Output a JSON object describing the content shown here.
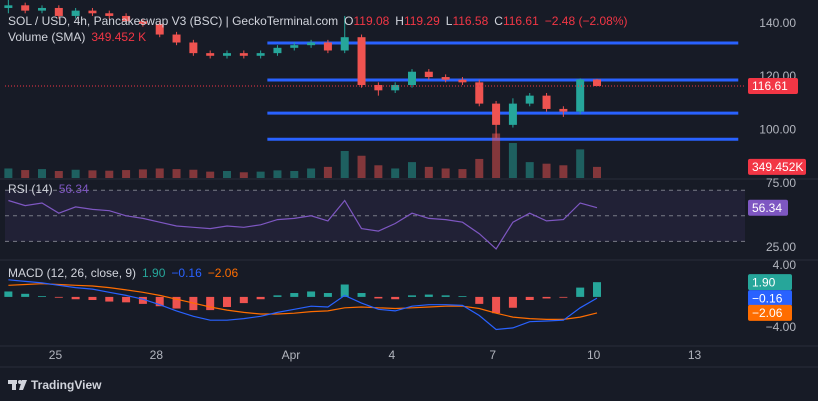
{
  "chart_data": [
    {
      "type": "candlestick",
      "title": "SOL / USD, 4h, Pancakeswap V3 (BSC) | GeckoTerminal.com",
      "ohlc": [
        {
          "label": "O",
          "value": 119.08
        },
        {
          "label": "H",
          "value": 119.29
        },
        {
          "label": "L",
          "value": 116.58
        },
        {
          "label": "C",
          "value": 116.61
        }
      ],
      "change": "−2.48 (−2.08%)",
      "x": [
        23.6,
        24.1,
        24.6,
        25.1,
        25.6,
        26.1,
        26.6,
        27.1,
        27.6,
        28.1,
        28.6,
        29.1,
        29.6,
        30.1,
        30.6,
        31.1,
        31.6,
        32.1,
        32.6,
        33.1,
        33.6,
        34.1,
        34.6,
        35.1,
        35.6,
        36.1,
        36.6,
        37.1,
        37.6,
        38.1,
        38.6,
        39.1,
        39.6,
        40.1,
        40.6,
        41.1
      ],
      "open": [
        146,
        147,
        145,
        146,
        143,
        145,
        144,
        143,
        141,
        140,
        136,
        133,
        129,
        128,
        129,
        128,
        129,
        131,
        132,
        133,
        130,
        135,
        117,
        115,
        117,
        122,
        120,
        119,
        118,
        110,
        102,
        110,
        113,
        108,
        107,
        119.08
      ],
      "high": [
        149,
        148,
        147,
        147,
        146,
        146,
        145,
        144,
        142,
        141,
        137,
        134,
        130,
        130,
        130,
        130,
        132,
        133,
        134,
        134,
        143,
        136,
        118,
        118,
        123,
        123,
        121,
        120,
        119,
        111,
        112,
        114,
        114,
        109,
        119.5,
        119.29
      ],
      "low": [
        144,
        144,
        144,
        142,
        142,
        143,
        142,
        140,
        139,
        135,
        132,
        128,
        127,
        127,
        127,
        127,
        128,
        130,
        131,
        129,
        129,
        116,
        113,
        114,
        116,
        119,
        118,
        117,
        109,
        97,
        101,
        109,
        107,
        105,
        106,
        116.58
      ],
      "close": [
        147,
        145,
        146,
        143,
        145,
        144,
        143,
        141,
        140,
        136,
        133,
        129,
        128,
        129,
        128,
        129,
        131,
        132,
        133,
        130,
        135,
        117,
        115,
        117,
        122,
        120,
        119,
        118,
        110,
        102,
        110,
        113,
        108,
        107,
        119.08,
        116.61
      ],
      "up_color": "#26a69a",
      "down_color": "#ef5350",
      "ylim": [
        82,
        149
      ],
      "yticks": [
        {
          "value": 140,
          "label": "140.00"
        },
        {
          "value": 120,
          "label": "120.00"
        },
        {
          "value": 100,
          "label": "100.00"
        }
      ],
      "xlim": [
        23.5,
        45.5
      ],
      "xticks": [
        {
          "value": 25,
          "label": "25"
        },
        {
          "value": 28,
          "label": "28"
        },
        {
          "value": 32,
          "label": "Apr"
        },
        {
          "value": 35,
          "label": "4"
        },
        {
          "value": 38,
          "label": "7"
        },
        {
          "value": 41,
          "label": "10"
        },
        {
          "value": 44,
          "label": "13"
        }
      ],
      "levels": [
        132.8,
        118.9,
        106.4,
        96.6
      ],
      "levels_x": [
        31.3,
        45.3
      ],
      "level_color": "#2962ff",
      "last_price_color": "#f23645"
    },
    {
      "type": "bar",
      "title": "Volume (SMA)",
      "legend_value": "349.452 K",
      "values": [
        300,
        250,
        280,
        220,
        260,
        240,
        230,
        250,
        270,
        300,
        280,
        260,
        200,
        220,
        180,
        200,
        240,
        220,
        300,
        350,
        850,
        700,
        400,
        300,
        500,
        350,
        300,
        280,
        600,
        1400,
        1100,
        500,
        450,
        400,
        900,
        349.452
      ],
      "value_labels": [
        null,
        null,
        null,
        null,
        null,
        null,
        null,
        null,
        null,
        null,
        null,
        null,
        null,
        null,
        null,
        null,
        null,
        null,
        null,
        null,
        null,
        null,
        null,
        null,
        null,
        null,
        null,
        null,
        null,
        null,
        null,
        null,
        null,
        null,
        null,
        "349.452K"
      ],
      "ylim": [
        0,
        5600
      ],
      "up_color": "rgba(38,166,154,0.5)",
      "down_color": "rgba(239,83,80,0.5)",
      "label_color": "#f23645"
    },
    {
      "type": "line",
      "title": "RSI (14)",
      "values": [
        62,
        58,
        60,
        52,
        57,
        55,
        54,
        50,
        48,
        45,
        42,
        41,
        40,
        42,
        41,
        43,
        47,
        48,
        50,
        46,
        62,
        40,
        38,
        44,
        52,
        48,
        47,
        45,
        36,
        24,
        45,
        52,
        46,
        47,
        60,
        56.34
      ],
      "color": "#7e57c2",
      "ylim": [
        17,
        78
      ],
      "yticks": [
        {
          "value": 75,
          "label": "75.00"
        },
        {
          "value": 25,
          "label": "25.00"
        }
      ],
      "bands": [
        70,
        50,
        30
      ]
    },
    {
      "type": "macd",
      "title": "MACD (12, 26, close, 9)",
      "histogram": {
        "up_color": "#26a69a",
        "down_color": "#ef5350",
        "values": [
          0.7,
          0.4,
          0.1,
          -0.1,
          -0.3,
          -0.4,
          -0.6,
          -0.7,
          -0.9,
          -1.2,
          -1.5,
          -1.7,
          -1.7,
          -1.3,
          -0.8,
          -0.3,
          0.2,
          0.5,
          0.7,
          0.5,
          1.6,
          0.5,
          -0.2,
          -0.3,
          0.2,
          0.3,
          0.2,
          0.1,
          -0.9,
          -2.1,
          -1.4,
          -0.4,
          -0.2,
          -0.1,
          1.2,
          1.9
        ],
        "value_labels": [
          null,
          null,
          null,
          null,
          null,
          null,
          null,
          null,
          null,
          null,
          null,
          null,
          null,
          null,
          null,
          null,
          null,
          null,
          null,
          null,
          null,
          null,
          null,
          null,
          null,
          null,
          null,
          null,
          null,
          null,
          null,
          null,
          null,
          null,
          null,
          "1.90"
        ]
      },
      "macd": {
        "color": "#2962ff",
        "values": [
          2.2,
          2.0,
          1.8,
          1.5,
          1.2,
          1.0,
          0.6,
          0.2,
          -0.3,
          -1.0,
          -1.8,
          -2.5,
          -3.0,
          -3.0,
          -2.8,
          -2.5,
          -2.0,
          -1.6,
          -1.2,
          -1.3,
          0.2,
          -0.8,
          -1.6,
          -1.8,
          -1.2,
          -1.0,
          -1.0,
          -1.1,
          -2.4,
          -4.2,
          -4.0,
          -3.2,
          -3.1,
          -3.0,
          -1.4,
          -0.16
        ],
        "value_labels": [
          null,
          null,
          null,
          null,
          null,
          null,
          null,
          null,
          null,
          null,
          null,
          null,
          null,
          null,
          null,
          null,
          null,
          null,
          null,
          null,
          null,
          null,
          null,
          null,
          null,
          null,
          null,
          null,
          null,
          null,
          null,
          null,
          null,
          null,
          null,
          "−0.16"
        ]
      },
      "signal": {
        "color": "#ff6d00",
        "values": [
          1.5,
          1.6,
          1.7,
          1.6,
          1.5,
          1.4,
          1.2,
          0.9,
          0.6,
          0.2,
          -0.3,
          -0.8,
          -1.3,
          -1.7,
          -2.0,
          -2.2,
          -2.2,
          -2.1,
          -1.9,
          -1.8,
          -1.4,
          -1.3,
          -1.4,
          -1.5,
          -1.4,
          -1.3,
          -1.2,
          -1.2,
          -1.5,
          -2.1,
          -2.6,
          -2.8,
          -2.9,
          -2.9,
          -2.6,
          -2.06
        ],
        "value_labels": [
          null,
          null,
          null,
          null,
          null,
          null,
          null,
          null,
          null,
          null,
          null,
          null,
          null,
          null,
          null,
          null,
          null,
          null,
          null,
          null,
          null,
          null,
          null,
          null,
          null,
          null,
          null,
          null,
          null,
          null,
          null,
          null,
          null,
          null,
          null,
          "−2.06"
        ]
      },
      "ylim": [
        -6.2,
        4.5
      ],
      "yticks": [
        {
          "value": 4,
          "label": "4.00"
        },
        {
          "value": -4,
          "label": "−4.00"
        }
      ]
    }
  ],
  "footer": {
    "brand": "TradingView"
  }
}
